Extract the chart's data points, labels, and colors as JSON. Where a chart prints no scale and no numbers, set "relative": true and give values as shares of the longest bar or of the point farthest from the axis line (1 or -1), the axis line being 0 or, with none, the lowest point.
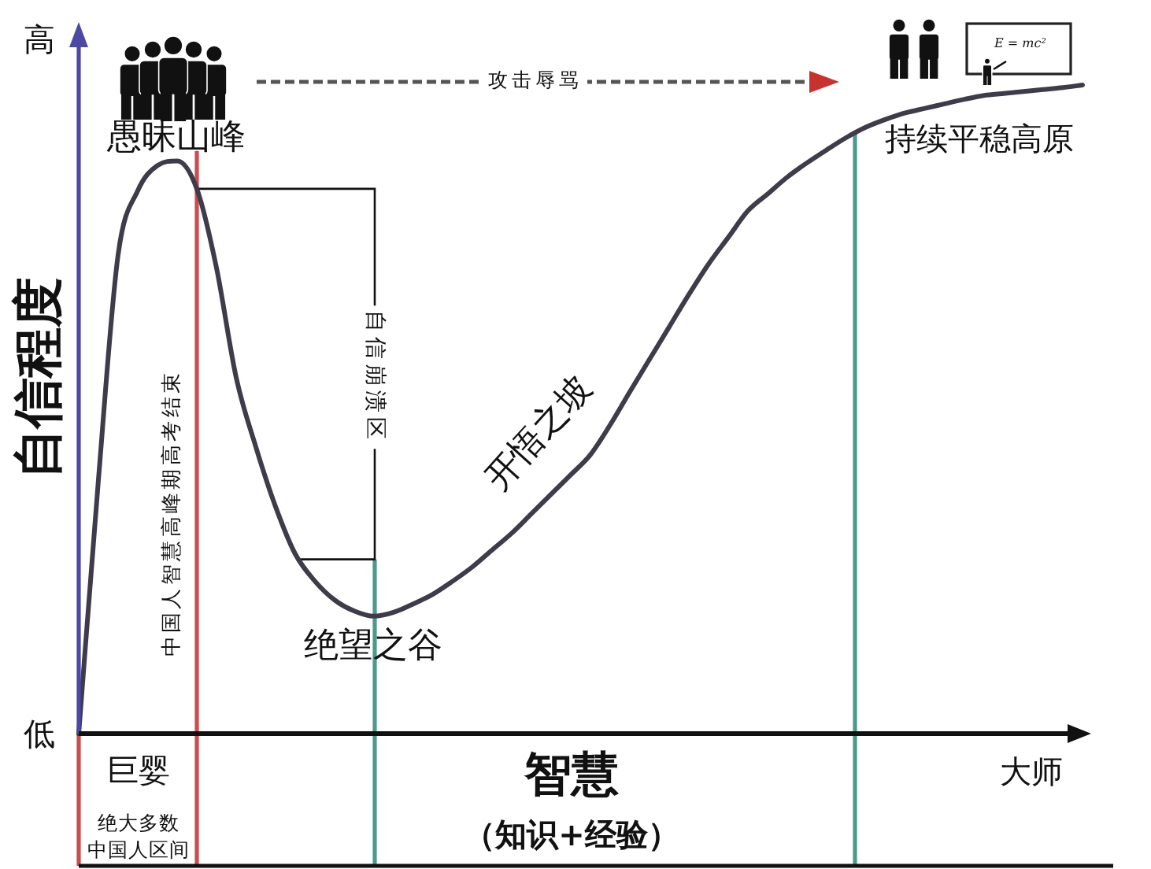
{
  "chart_data": {
    "type": "line",
    "relative": true,
    "ylabel": "自信程度",
    "xlabel": "智慧",
    "categories": [
      null,
      null,
      null,
      null,
      null,
      null,
      null,
      null,
      null,
      null,
      null,
      null,
      null,
      null,
      null,
      null,
      null,
      null,
      null,
      null,
      null,
      null,
      null,
      null,
      null,
      null,
      null,
      null,
      null,
      null,
      null,
      null,
      null,
      null,
      null,
      null,
      null,
      null,
      null,
      null,
      null,
      null,
      null,
      null,
      null,
      null,
      null,
      null,
      null,
      null,
      null,
      null
    ],
    "series": [
      {
        "color": "#3f3b4b",
        "values": [
          0.0,
          0.391,
          0.738,
          0.837,
          0.876,
          0.883,
          0.84,
          0.718,
          0.549,
          0.442,
          0.35,
          0.277,
          0.235,
          0.206,
          0.189,
          0.181,
          0.187,
          0.2,
          0.215,
          0.235,
          0.257,
          0.283,
          0.309,
          0.339,
          0.369,
          0.399,
          0.43,
          0.476,
          0.527,
          0.577,
          0.627,
          0.677,
          0.724,
          0.765,
          0.806,
          0.832,
          0.858,
          0.88,
          0.9,
          0.919,
          0.935,
          0.947,
          0.957,
          0.964,
          0.971,
          0.978,
          0.984,
          0.987,
          0.99,
          0.993,
          0.996,
          1.0
        ]
      }
    ],
    "annotations": [
      "高",
      "低",
      "愚昧山峰",
      "攻击辱骂",
      "E = mc²",
      "持续平稳高原",
      "自信崩溃区",
      "开悟之坡",
      "绝望之谷",
      "中国人智慧高峰期高考结束",
      "巨婴",
      "绝大多数",
      "中国人区间",
      "大师",
      "（知识+经验）"
    ]
  }
}
